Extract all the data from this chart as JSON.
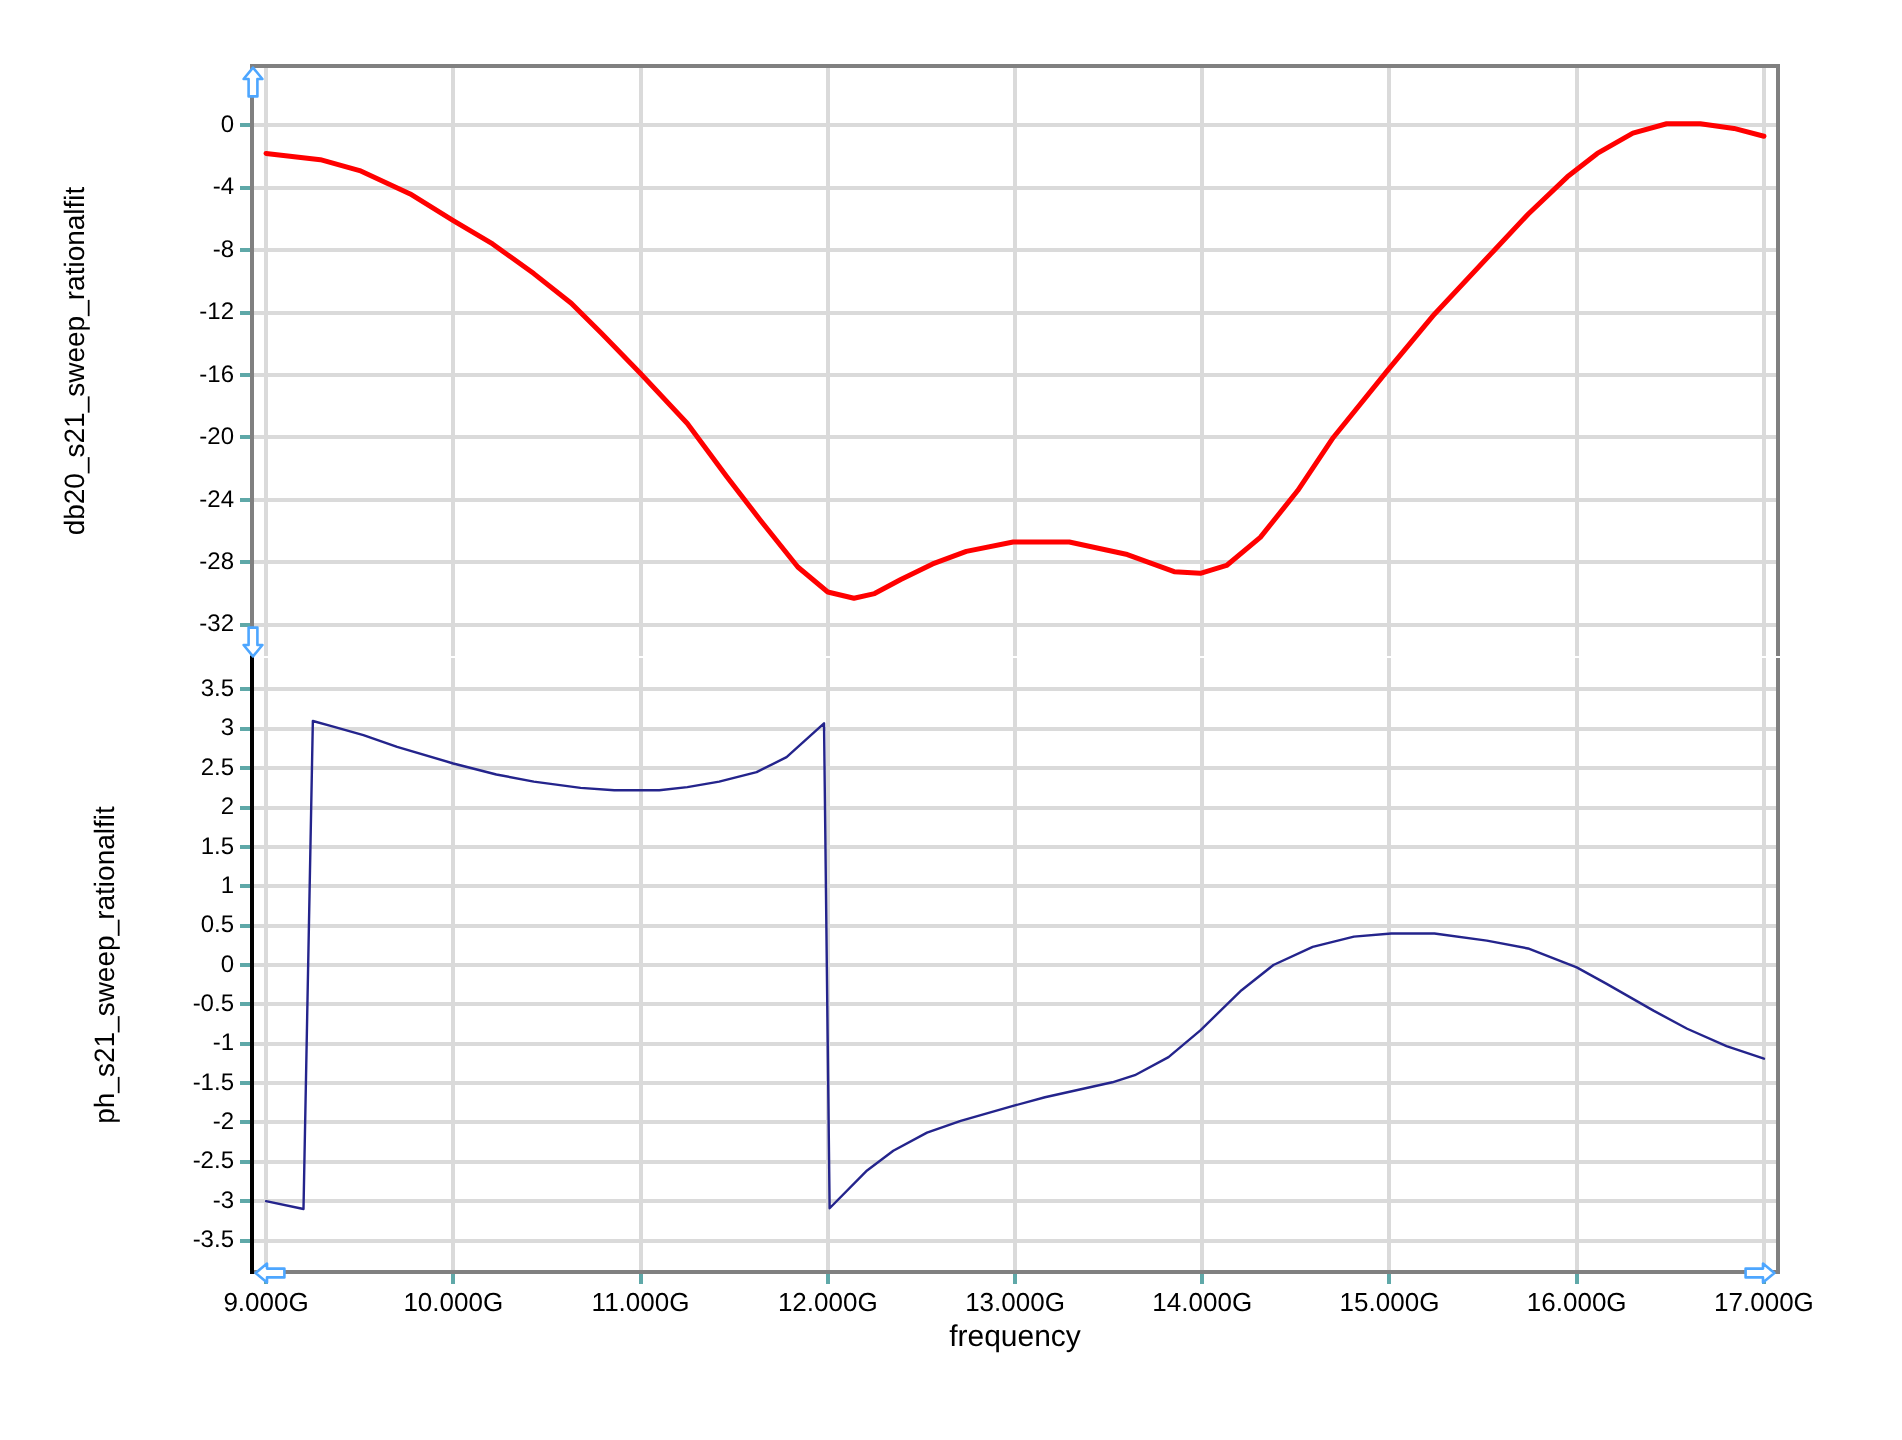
{
  "chart_data": [
    {
      "type": "line",
      "ylabel": "db20_s21_sweep_rationalfit",
      "x": [
        9.0,
        9.29,
        9.5,
        9.77,
        10.0,
        10.21,
        10.43,
        10.63,
        10.79,
        11.0,
        11.25,
        11.46,
        11.64,
        11.84,
        12.0,
        12.14,
        12.25,
        12.39,
        12.56,
        12.74,
        12.99,
        13.29,
        13.6,
        13.85,
        13.99,
        14.13,
        14.31,
        14.51,
        14.7,
        14.99,
        15.24,
        15.56,
        15.74,
        15.95,
        16.11,
        16.3,
        16.48,
        16.66,
        16.84,
        17.0
      ],
      "series": [
        {
          "color": "#ff0000",
          "values": [
            -1.8,
            -2.2,
            -2.9,
            -4.4,
            -6.1,
            -7.6,
            -9.5,
            -11.4,
            -13.3,
            -15.9,
            -19.1,
            -22.5,
            -25.3,
            -28.3,
            -29.9,
            -30.3,
            -30.0,
            -29.1,
            -28.1,
            -27.3,
            -26.7,
            -26.7,
            -27.5,
            -28.6,
            -28.7,
            -28.2,
            -26.4,
            -23.4,
            -20.0,
            -15.7,
            -12.1,
            -8.0,
            -5.7,
            -3.3,
            -1.8,
            -0.5,
            0.1,
            0.1,
            -0.2,
            -0.7
          ]
        }
      ],
      "xlim": [
        8.925,
        17.075
      ],
      "xticks": [
        9,
        10,
        11,
        12,
        13,
        14,
        15,
        16,
        17
      ],
      "ylim": [
        -34,
        3.8
      ],
      "yticks": [
        0,
        -4,
        -8,
        -12,
        -16,
        -20,
        -24,
        -28,
        -32
      ],
      "grid": true,
      "tick_labels": "y"
    },
    {
      "type": "line",
      "xlabel": "frequency",
      "ylabel": "ph_s21_sweep_rationalfit",
      "x": [
        9.0,
        9.2,
        9.25,
        9.34,
        9.52,
        9.7,
        10.0,
        10.23,
        10.43,
        10.68,
        10.86,
        11.1,
        11.25,
        11.42,
        11.62,
        11.78,
        11.98,
        12.01,
        12.21,
        12.35,
        12.53,
        12.71,
        12.99,
        13.16,
        13.52,
        13.64,
        13.82,
        13.99,
        14.21,
        14.38,
        14.59,
        14.81,
        15.01,
        15.24,
        15.52,
        15.74,
        16.0,
        16.16,
        16.41,
        16.59,
        16.8,
        17.0
      ],
      "series": [
        {
          "color": "#24248c",
          "values": [
            -3.0,
            -3.1,
            3.1,
            3.04,
            2.92,
            2.77,
            2.56,
            2.42,
            2.33,
            2.25,
            2.22,
            2.22,
            2.26,
            2.33,
            2.45,
            2.64,
            3.07,
            -3.09,
            -2.61,
            -2.36,
            -2.13,
            -1.98,
            -1.79,
            -1.68,
            -1.49,
            -1.4,
            -1.17,
            -0.83,
            -0.32,
            0.0,
            0.23,
            0.36,
            0.4,
            0.4,
            0.31,
            0.21,
            -0.03,
            -0.24,
            -0.58,
            -0.81,
            -1.03,
            -1.19
          ]
        }
      ],
      "xlim": [
        8.925,
        17.075
      ],
      "xticks": [
        {
          "value": 9,
          "label": "9.000G"
        },
        {
          "value": 10,
          "label": "10.000G"
        },
        {
          "value": 11,
          "label": "11.000G"
        },
        {
          "value": 12,
          "label": "12.000G"
        },
        {
          "value": 13,
          "label": "13.000G"
        },
        {
          "value": 14,
          "label": "14.000G"
        },
        {
          "value": 15,
          "label": "15.000G"
        },
        {
          "value": 16,
          "label": "16.000G"
        },
        {
          "value": 17,
          "label": "17.000G"
        }
      ],
      "ylim": [
        -3.9,
        3.9
      ],
      "yticks": [
        3.5,
        3,
        2.5,
        2,
        1.5,
        1,
        0.5,
        0,
        -0.5,
        -1,
        -1.5,
        -2,
        -2.5,
        -3,
        -3.5
      ],
      "grid": true
    }
  ]
}
